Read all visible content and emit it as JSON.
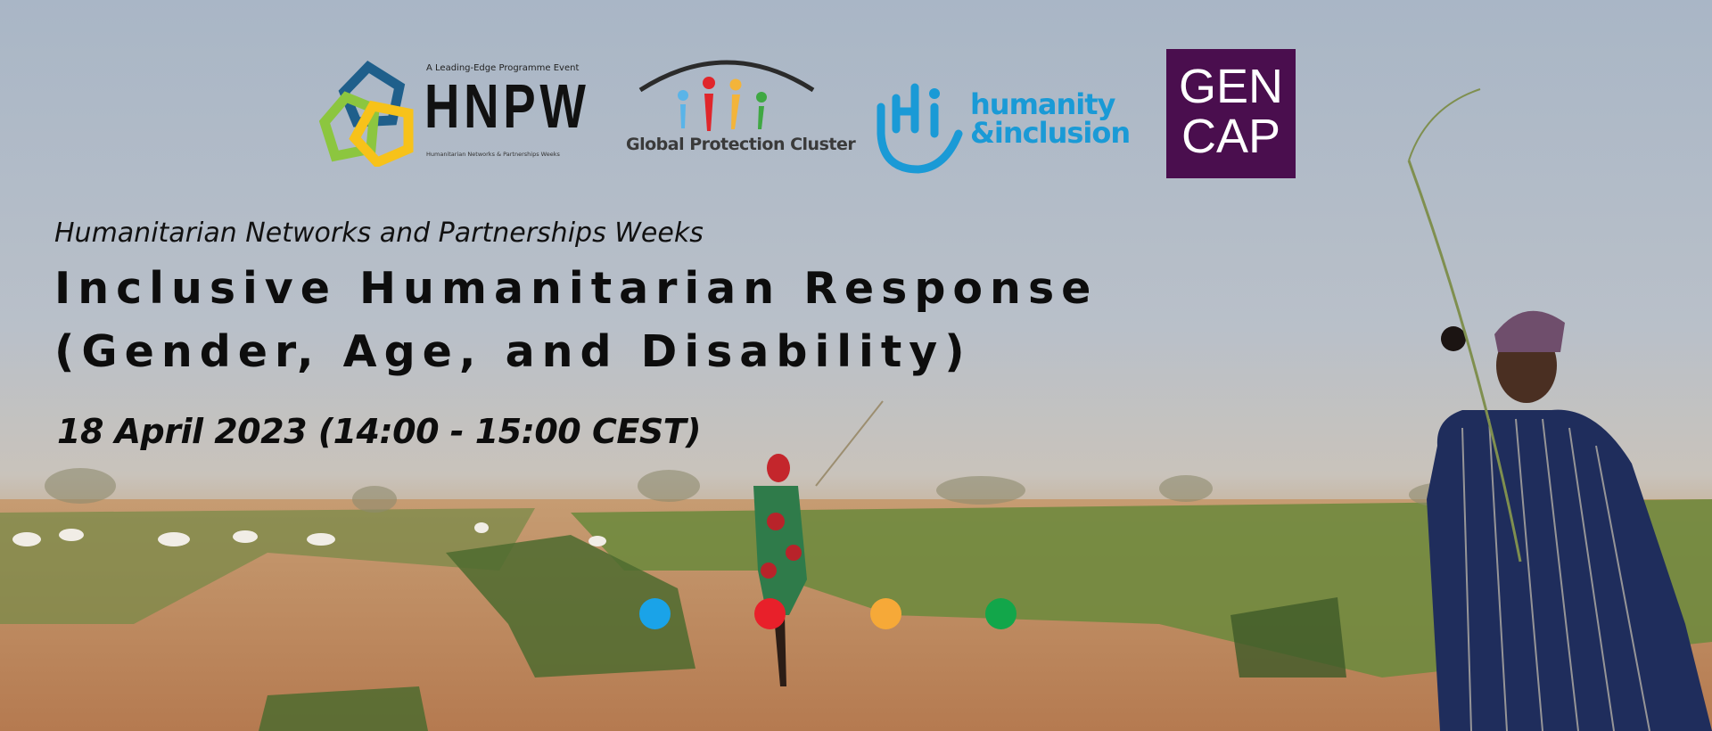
{
  "logos": {
    "hnpw": {
      "tagline": "A Leading-Edge Programme Event",
      "name": "HNPW",
      "subtext": "Humanitarian Networks & Partnerships Weeks",
      "colors": [
        "#1f5f8b",
        "#8cc63f",
        "#f7c21a"
      ]
    },
    "gpc": {
      "name": "Global Protection Cluster",
      "colors": [
        "#5ab4e8",
        "#e0262b",
        "#f3b43a",
        "#3fa843"
      ]
    },
    "hi": {
      "line1": "humanity",
      "line2": "&inclusion",
      "color": "#1a9ad6"
    },
    "gencap": {
      "line1": "GEN",
      "line2": "CAP",
      "color": "#4a0e4e"
    }
  },
  "event": {
    "subtitle": "Humanitarian Networks and Partnerships Weeks",
    "title_line1": "Inclusive Humanitarian Response",
    "title_line2": "(Gender, Age, and Disability)",
    "date": "18 April 2023 (14:00 - 15:00 CEST)"
  },
  "dots": [
    "#1aa3e8",
    "#e8202a",
    "#f6a938",
    "#12a64a"
  ]
}
